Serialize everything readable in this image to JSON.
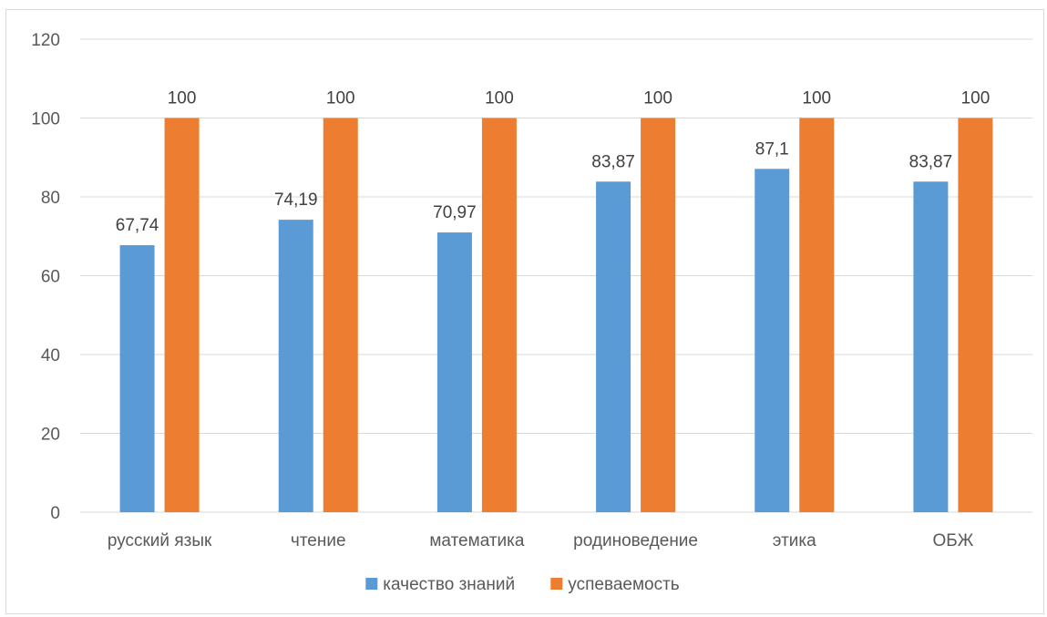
{
  "chart_data": {
    "type": "bar",
    "categories": [
      "русский язык",
      "чтение",
      "математика",
      "родиноведение",
      "этика",
      "ОБЖ"
    ],
    "series": [
      {
        "name": "качество знаний",
        "values": [
          67.74,
          74.19,
          70.97,
          83.87,
          87.1,
          83.87
        ],
        "labels": [
          "67,74",
          "74,19",
          "70,97",
          "83,87",
          "87,1",
          "83,87"
        ],
        "color": "#5b9bd5"
      },
      {
        "name": "успеваемость",
        "values": [
          100,
          100,
          100,
          100,
          100,
          100
        ],
        "labels": [
          "100",
          "100",
          "100",
          "100",
          "100",
          "100"
        ],
        "color": "#ed7d31"
      }
    ],
    "ylim": [
      0,
      120
    ],
    "yticks": [
      0,
      20,
      40,
      60,
      80,
      100,
      120
    ],
    "grid": true,
    "legend_position": "bottom",
    "gridline_color": "#d9d9d9",
    "title": "",
    "xlabel": "",
    "ylabel": ""
  }
}
